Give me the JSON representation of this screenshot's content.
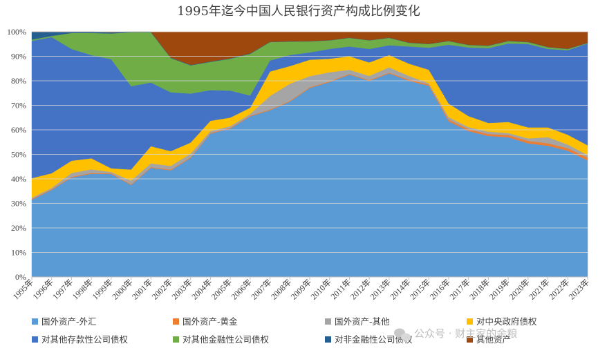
{
  "chart_data": {
    "type": "area",
    "stacked": true,
    "percent": true,
    "title": "1995年迄今中国人民银行资产构成比例变化",
    "xlabel": "",
    "ylabel": "",
    "ylim": [
      0,
      100
    ],
    "y_ticks": [
      "0%",
      "10%",
      "20%",
      "30%",
      "40%",
      "50%",
      "60%",
      "70%",
      "80%",
      "90%",
      "100%"
    ],
    "grid": true,
    "legend_position": "bottom",
    "x": [
      "1995年",
      "1996年",
      "1997年",
      "1998年",
      "1999年",
      "2000年",
      "2001年",
      "2002年",
      "2003年",
      "2004年",
      "2005年",
      "2006年",
      "2007年",
      "2008年",
      "2009年",
      "2010年",
      "2011年",
      "2012年",
      "2013年",
      "2014年",
      "2015年",
      "2016年",
      "2017年",
      "2018年",
      "2019年",
      "2020年",
      "2021年",
      "2022年",
      "2023年"
    ],
    "series": [
      {
        "name": "国外资产-外汇",
        "color": "#5b9bd5",
        "values": [
          31.5,
          35.5,
          40.5,
          42,
          42,
          37.5,
          44.5,
          43.5,
          48.5,
          58.5,
          60.5,
          65.5,
          68,
          71.5,
          77,
          79.5,
          82.5,
          80,
          83,
          80,
          78,
          63.5,
          59.5,
          57.5,
          57,
          54.5,
          53.5,
          51.5,
          47.5
        ]
      },
      {
        "name": "国外资产-黄金",
        "color": "#ed7d31",
        "values": [
          0.3,
          0.3,
          0.3,
          0.3,
          0.3,
          0.3,
          0.3,
          0.3,
          0.3,
          0.3,
          0.3,
          0.3,
          0.3,
          0.3,
          0.3,
          0.3,
          0.3,
          0.3,
          0.3,
          0.5,
          0.5,
          0.7,
          0.8,
          0.8,
          0.9,
          1.0,
          1.0,
          1.0,
          1.2
        ]
      },
      {
        "name": "国外资产-其他",
        "color": "#a5a5a5",
        "values": [
          0.5,
          0.5,
          1.5,
          1.5,
          0.5,
          1.5,
          1.5,
          1.5,
          1.5,
          0.7,
          0.7,
          0.7,
          5.5,
          7,
          4.5,
          3.7,
          1.7,
          1.7,
          2.2,
          1.5,
          0.5,
          1.0,
          0.8,
          1.0,
          0.8,
          1.0,
          2.5,
          1.5,
          1.0
        ]
      },
      {
        "name": "对中央政府债权",
        "color": "#ffc000",
        "values": [
          8,
          6,
          5,
          4.5,
          1.5,
          4.5,
          7,
          6,
          4.5,
          4.2,
          3.5,
          2.5,
          10,
          7.2,
          6.7,
          5.5,
          5.5,
          5.5,
          5,
          5,
          5.5,
          5.5,
          4.5,
          3.5,
          4.5,
          4.5,
          4.0,
          4.0,
          4.0
        ]
      },
      {
        "name": "对其他存款性公司债权",
        "color": "#4472c4",
        "values": [
          56,
          55.5,
          45.5,
          42,
          44.5,
          34,
          26,
          24,
          20,
          12.5,
          11,
          5,
          4.5,
          4.5,
          3,
          4,
          4,
          5.5,
          4,
          7,
          9,
          24,
          28,
          30.5,
          32,
          34,
          32,
          34.5,
          41.5
        ]
      },
      {
        "name": "对其他金融性公司债权",
        "color": "#70ad47",
        "values": [
          0.5,
          0.5,
          6.5,
          9,
          10.5,
          22,
          20.5,
          14,
          11.5,
          11.5,
          13,
          17,
          7.5,
          5.5,
          4.5,
          3.5,
          3.5,
          3.5,
          3,
          1.5,
          1.5,
          1.5,
          1.0,
          1.0,
          1.0,
          0.8,
          0.7,
          0.5,
          0.2
        ]
      },
      {
        "name": "对非金融性公司债权",
        "color": "#255e91",
        "values": [
          3.2,
          1.7,
          0.5,
          0.5,
          0.5,
          0.2,
          0.2,
          0.2,
          0.2,
          0.2,
          0.2,
          0.2,
          0.1,
          0.1,
          0.1,
          0.1,
          0.1,
          0.1,
          0.1,
          0.1,
          0.1,
          0.1,
          0.1,
          0.1,
          0.1,
          0.1,
          0.1,
          0.1,
          0.1
        ]
      },
      {
        "name": "其他资产",
        "color": "#9e480e",
        "values": [
          0,
          0,
          0,
          0,
          0.2,
          0,
          0,
          10.5,
          13.5,
          12.1,
          10.8,
          8.8,
          4.1,
          3.9,
          3.8,
          3.4,
          2.4,
          3.4,
          2.4,
          4.4,
          4.9,
          3.7,
          5.3,
          5.6,
          3.7,
          4.1,
          6.2,
          6.9,
          4.5
        ]
      }
    ]
  },
  "watermark": "公众号 · 财主家的余粮"
}
